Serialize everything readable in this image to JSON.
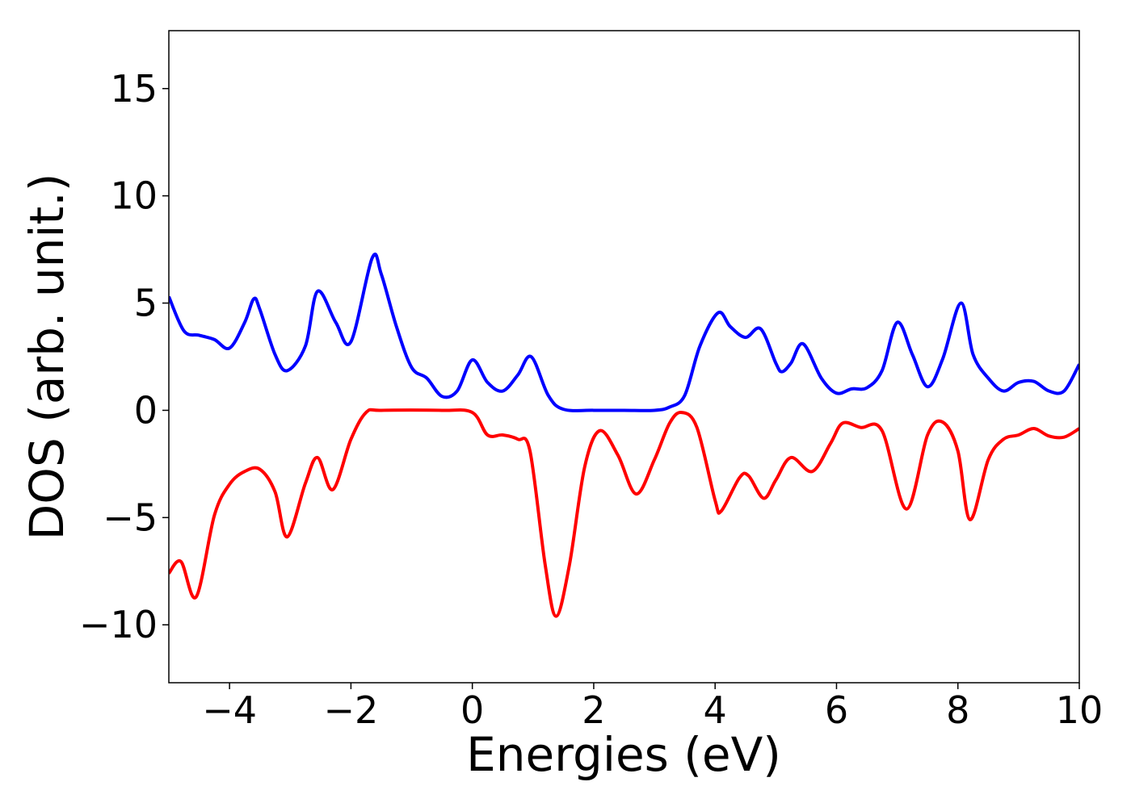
{
  "chart_data": {
    "type": "line",
    "xlabel": "Energies (eV)",
    "ylabel": "DOS (arb. unit.)",
    "xlim": [
      -5,
      10
    ],
    "ylim": [
      -12.7,
      17.7
    ],
    "xticks": [
      {
        "value": -4,
        "label": "−4"
      },
      {
        "value": -2,
        "label": "−2"
      },
      0,
      2,
      4,
      6,
      8,
      10
    ],
    "yticks": [
      {
        "value": -10,
        "label": "−10"
      },
      {
        "value": -5,
        "label": "−5"
      },
      0,
      5,
      10,
      15
    ],
    "series": [
      {
        "color": "#0000ff",
        "x": [
          -5,
          -4.75,
          -4.5,
          -4.25,
          -4,
          -3.75,
          -3.6,
          -3.5,
          -3.25,
          -3.05,
          -2.75,
          -2.55,
          -2.25,
          -2.0,
          -1.65,
          -1.5,
          -1.25,
          -1.0,
          -0.75,
          -0.5,
          -0.25,
          0.0,
          0.25,
          0.5,
          0.75,
          0.97,
          1.25,
          1.5,
          2.0,
          2.5,
          3.0,
          3.25,
          3.5,
          3.75,
          4.05,
          4.25,
          4.5,
          4.75,
          5.0,
          5.1,
          5.25,
          5.45,
          5.75,
          6.0,
          6.25,
          6.5,
          6.75,
          7.0,
          7.25,
          7.5,
          7.75,
          8.05,
          8.25,
          8.5,
          8.75,
          9.0,
          9.25,
          9.5,
          9.75,
          10.0
        ],
        "values": [
          5.3,
          3.7,
          3.5,
          3.3,
          2.9,
          4.1,
          5.2,
          4.7,
          2.6,
          1.85,
          3.0,
          5.55,
          4.1,
          3.2,
          7.1,
          6.35,
          3.9,
          2.0,
          1.5,
          0.65,
          0.9,
          2.35,
          1.3,
          0.9,
          1.65,
          2.5,
          0.7,
          0.05,
          0,
          0,
          0,
          0.15,
          0.7,
          3.0,
          4.55,
          3.9,
          3.4,
          3.8,
          2.2,
          1.8,
          2.2,
          3.1,
          1.5,
          0.8,
          1.0,
          1.05,
          1.85,
          4.1,
          2.6,
          1.1,
          2.4,
          5.0,
          2.6,
          1.5,
          0.9,
          1.3,
          1.35,
          0.9,
          0.9,
          2.15
        ]
      },
      {
        "color": "#ff0000",
        "x": [
          -5,
          -4.8,
          -4.55,
          -4.25,
          -4.0,
          -3.75,
          -3.5,
          -3.25,
          -3.05,
          -2.75,
          -2.55,
          -2.3,
          -2.0,
          -1.75,
          -1.5,
          -0.5,
          0.0,
          0.25,
          0.5,
          0.75,
          0.95,
          1.2,
          1.38,
          1.6,
          1.85,
          2.1,
          2.4,
          2.7,
          3.0,
          3.25,
          3.45,
          3.7,
          4.0,
          4.1,
          4.4,
          4.55,
          4.8,
          5.0,
          5.25,
          5.6,
          5.9,
          6.1,
          6.4,
          6.75,
          7.15,
          7.5,
          7.75,
          8.0,
          8.2,
          8.5,
          8.75,
          9.0,
          9.25,
          9.5,
          9.75,
          10
        ],
        "values": [
          -7.6,
          -7.05,
          -8.7,
          -4.9,
          -3.45,
          -2.85,
          -2.75,
          -3.8,
          -5.9,
          -3.4,
          -2.2,
          -3.7,
          -1.35,
          -0.1,
          0,
          0,
          -0.1,
          -1.15,
          -1.15,
          -1.35,
          -1.9,
          -7.2,
          -9.6,
          -7.2,
          -2.65,
          -0.95,
          -2.1,
          -3.9,
          -2.3,
          -0.6,
          -0.1,
          -0.8,
          -4.2,
          -4.7,
          -3.15,
          -3.05,
          -4.1,
          -3.25,
          -2.2,
          -2.85,
          -1.55,
          -0.6,
          -0.8,
          -0.95,
          -4.6,
          -1.15,
          -0.55,
          -1.9,
          -5.1,
          -2.3,
          -1.35,
          -1.15,
          -0.85,
          -1.2,
          -1.25,
          -0.85
        ]
      }
    ]
  }
}
